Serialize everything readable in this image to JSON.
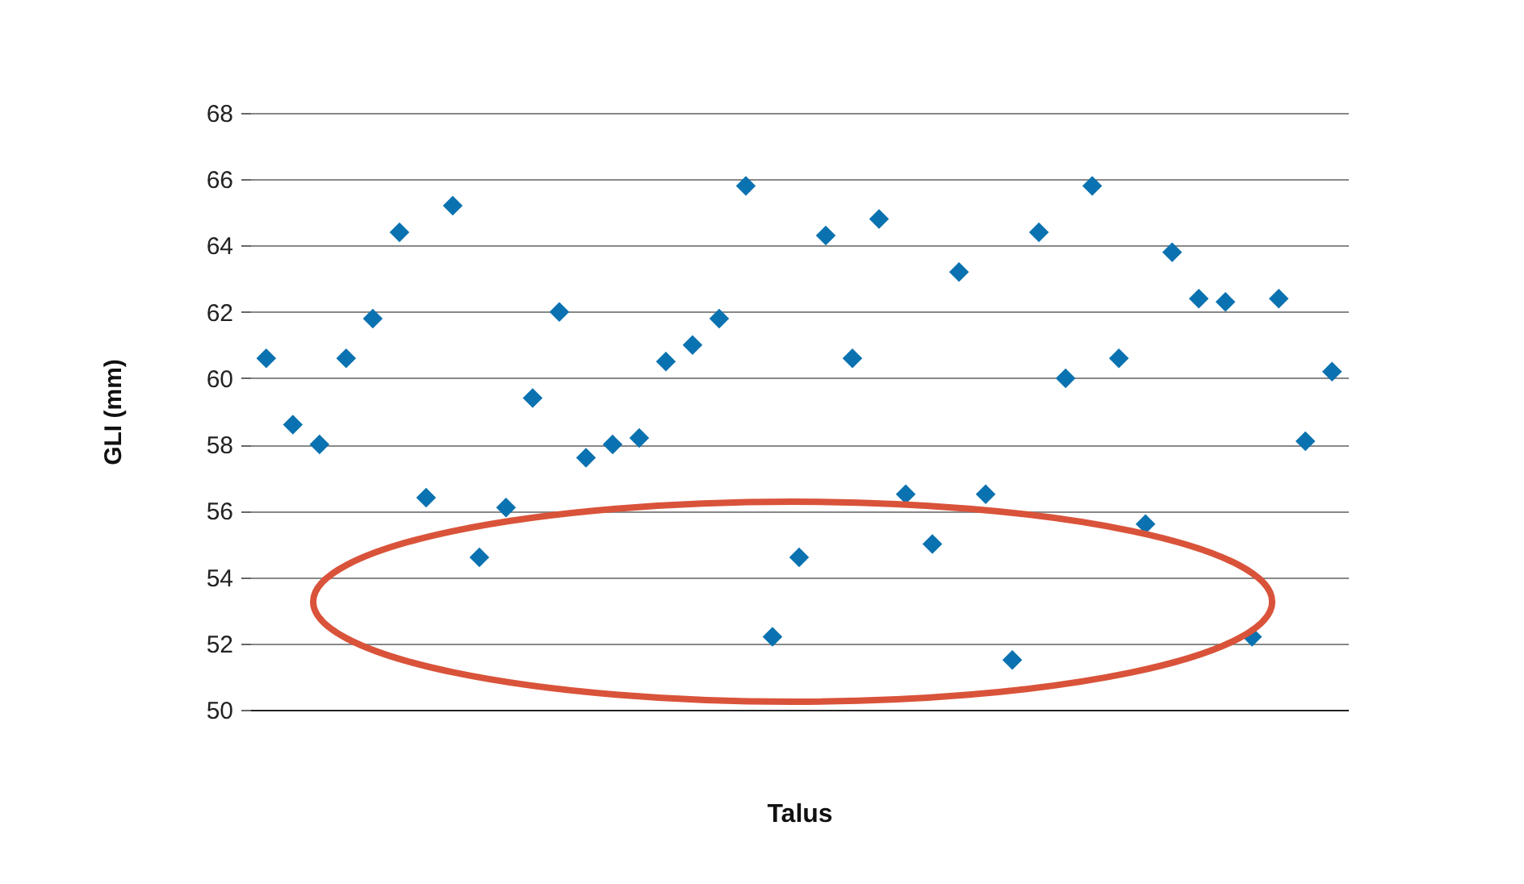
{
  "chart_data": {
    "type": "scatter",
    "xlabel": "Talus",
    "ylabel": "GLI (mm)",
    "categories": [
      null,
      null,
      null,
      null,
      null,
      null,
      null,
      null,
      null,
      null,
      null,
      null,
      null,
      null,
      null,
      null,
      null,
      null,
      null,
      null,
      null,
      null,
      null,
      null,
      null,
      null,
      null,
      null,
      null,
      null,
      null,
      null,
      null,
      null,
      null,
      null,
      null,
      null,
      null,
      null,
      null
    ],
    "values": [
      60.6,
      58.6,
      58.0,
      60.6,
      61.8,
      64.4,
      56.4,
      65.2,
      54.6,
      56.1,
      59.4,
      62.0,
      57.6,
      58.0,
      58.2,
      60.5,
      61.0,
      61.8,
      65.8,
      52.2,
      54.6,
      64.3,
      60.6,
      64.8,
      56.5,
      55.0,
      63.2,
      56.5,
      51.5,
      64.4,
      60.0,
      65.8,
      60.6,
      55.6,
      63.8,
      62.4,
      62.3,
      52.2,
      62.4,
      58.1,
      60.2
    ],
    "color": "#0a72b0",
    "marker": "diamond",
    "ylim": [
      50,
      68
    ],
    "yticks": [
      50,
      52,
      54,
      56,
      58,
      60,
      62,
      64,
      66,
      68
    ],
    "grid": "y"
  }
}
